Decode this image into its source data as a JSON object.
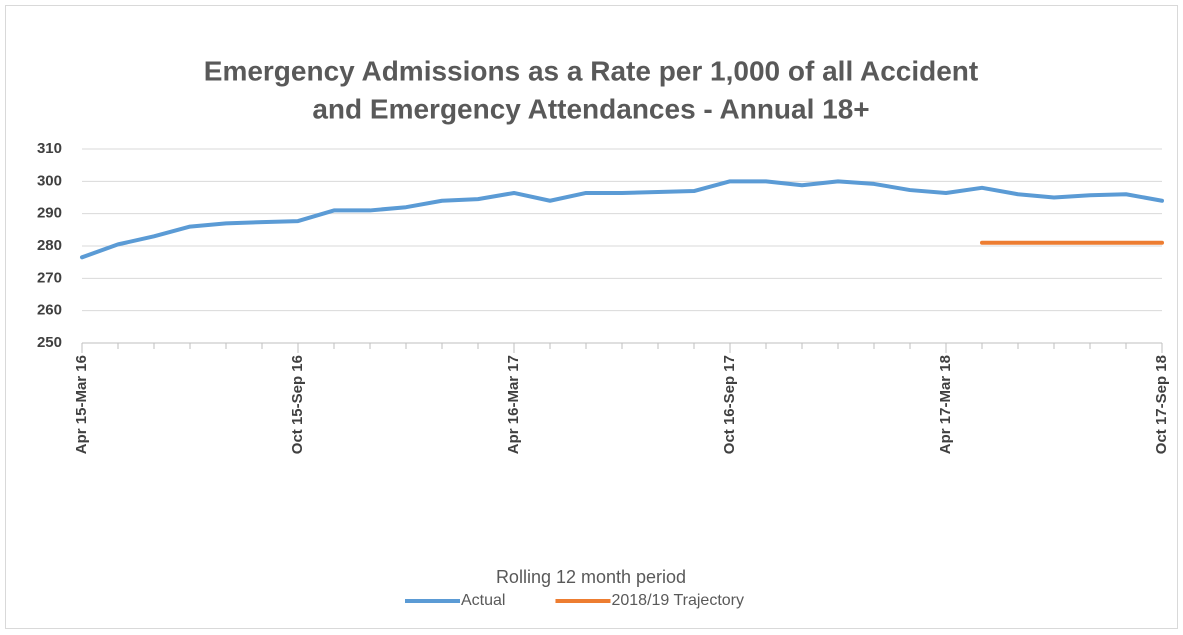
{
  "chart_data": {
    "type": "line",
    "title": [
      "Emergency Admissions as a Rate per 1,000 of all Accident",
      "and Emergency Attendances - Annual 18+"
    ],
    "x_label": "Rolling 12 month period",
    "categories": [
      "Apr 15-Mar 16",
      null,
      null,
      null,
      null,
      null,
      "Oct 15-Sep 16",
      null,
      null,
      null,
      null,
      null,
      "Apr 16-Mar 17",
      null,
      null,
      null,
      null,
      null,
      "Oct 16-Sep 17",
      null,
      null,
      null,
      null,
      null,
      "Apr 17-Mar 18",
      null,
      null,
      null,
      null,
      null,
      "Oct 17-Sep 18"
    ],
    "series": [
      {
        "name": "Actual",
        "color": "#5b9bd5",
        "values": [
          276.5,
          280.5,
          283,
          286,
          287,
          287.4,
          287.7,
          291,
          291,
          292,
          294,
          294.5,
          296.4,
          294,
          296.4,
          296.4,
          296.7,
          297,
          300,
          300,
          298.8,
          300,
          299.2,
          297.3,
          296.4,
          298,
          296,
          295,
          295.7,
          296,
          294
        ]
      },
      {
        "name": "2018/19 Trajectory",
        "color": "#ed7d31",
        "values": [
          null,
          null,
          null,
          null,
          null,
          null,
          null,
          null,
          null,
          null,
          null,
          null,
          null,
          null,
          null,
          null,
          null,
          null,
          null,
          null,
          null,
          null,
          null,
          null,
          null,
          281,
          281,
          281,
          281,
          281,
          281
        ]
      }
    ],
    "ylim": [
      250,
      310
    ],
    "yticks": [
      250,
      260,
      270,
      280,
      290,
      300,
      310
    ],
    "grid": true,
    "legend": "bottom"
  }
}
